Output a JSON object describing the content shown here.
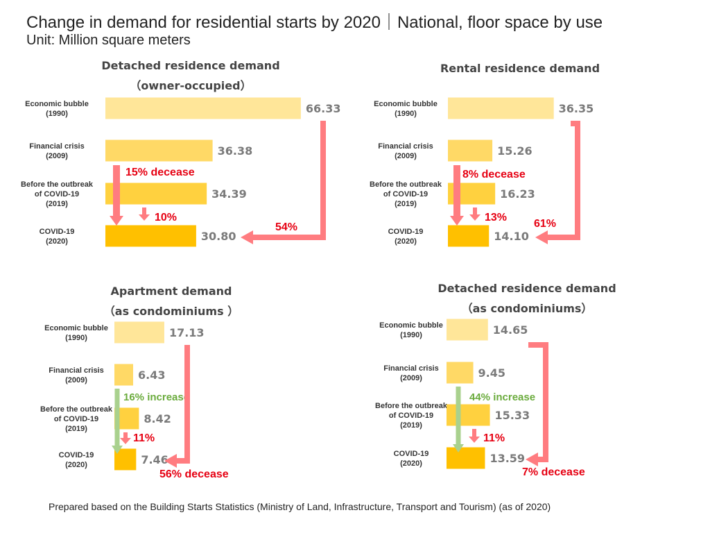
{
  "header": {
    "title": "Change in demand for residential starts by 2020｜National, floor space by use",
    "unit": "Unit: Million square meters"
  },
  "footer": {
    "source": "Prepared based on the Building Starts Statistics (Ministry of Land, Infrastructure, Transport and Tourism) (as of 2020)"
  },
  "colors": {
    "bar": [
      "#ffe699",
      "#ffd966",
      "#ffd13f",
      "#ffc000"
    ],
    "arrow_red": "#ff7c80",
    "arrow_green": "#a9d18e",
    "label_red": "#e60012",
    "label_green": "#6aab3c",
    "value_text": "#7a7a7a"
  },
  "chart_data": [
    {
      "type": "bar",
      "orientation": "horizontal",
      "title": [
        "Detached residence demand",
        "（owner-occupied）"
      ],
      "categories": [
        [
          "Economic bubble",
          "(1990)"
        ],
        [
          "Financial crisis",
          "(2009)"
        ],
        [
          "Before the outbreak",
          "of COVID-19",
          "(2019)"
        ],
        [
          "COVID-19",
          "(2020)"
        ]
      ],
      "values": [
        66.33,
        36.38,
        34.39,
        30.8
      ],
      "value_labels": [
        "66.33",
        "36.38",
        "34.39",
        "30.80"
      ],
      "annotations": {
        "trend": {
          "text": "15% decease",
          "kind": "decrease"
        },
        "last_step": {
          "text": "10%",
          "kind": "decrease"
        },
        "overall": {
          "text": "54%",
          "kind": "decrease"
        }
      }
    },
    {
      "type": "bar",
      "orientation": "horizontal",
      "title": [
        "Rental residence demand"
      ],
      "categories": [
        [
          "Economic bubble",
          "(1990)"
        ],
        [
          "Financial crisis",
          "(2009)"
        ],
        [
          "Before the outbreak",
          "of COVID-19",
          "(2019)"
        ],
        [
          "COVID-19",
          "(2020)"
        ]
      ],
      "values": [
        36.35,
        15.26,
        16.23,
        14.1
      ],
      "value_labels": [
        "36.35",
        "15.26",
        "16.23",
        "14.10"
      ],
      "annotations": {
        "trend": {
          "text": "8% decease",
          "kind": "decrease"
        },
        "last_step": {
          "text": "13%",
          "kind": "decrease"
        },
        "overall": {
          "text": "61%",
          "kind": "decrease"
        }
      }
    },
    {
      "type": "bar",
      "orientation": "horizontal",
      "title": [
        "Apartment demand",
        "（as condominiums ）"
      ],
      "categories": [
        [
          "Economic bubble",
          "(1990)"
        ],
        [
          "Financial crisis",
          "(2009)"
        ],
        [
          "Before the outbreak",
          "of COVID-19",
          "(2019)"
        ],
        [
          "COVID-19",
          "(2020)"
        ]
      ],
      "values": [
        17.13,
        6.43,
        8.42,
        7.46
      ],
      "value_labels": [
        "17.13",
        "6.43",
        "8.42",
        "7.46"
      ],
      "annotations": {
        "trend": {
          "text": "16% increase",
          "kind": "increase"
        },
        "last_step": {
          "text": "11%",
          "kind": "decrease"
        },
        "overall": {
          "text": "56% decease",
          "kind": "decrease"
        }
      }
    },
    {
      "type": "bar",
      "orientation": "horizontal",
      "title": [
        "Detached residence demand",
        "（as condominiums）"
      ],
      "categories": [
        [
          "Economic bubble",
          "(1990)"
        ],
        [
          "Financial crisis",
          "(2009)"
        ],
        [
          "Before the outbreak",
          "of COVID-19",
          "(2019)"
        ],
        [
          "COVID-19",
          "(2020)"
        ]
      ],
      "values": [
        14.65,
        9.45,
        15.33,
        13.59
      ],
      "value_labels": [
        "14.65",
        "9.45",
        "15.33",
        "13.59"
      ],
      "annotations": {
        "trend": {
          "text": "44% increase",
          "kind": "increase"
        },
        "last_step": {
          "text": "11%",
          "kind": "decrease"
        },
        "overall": {
          "text": "7% decease",
          "kind": "decrease"
        }
      }
    }
  ]
}
